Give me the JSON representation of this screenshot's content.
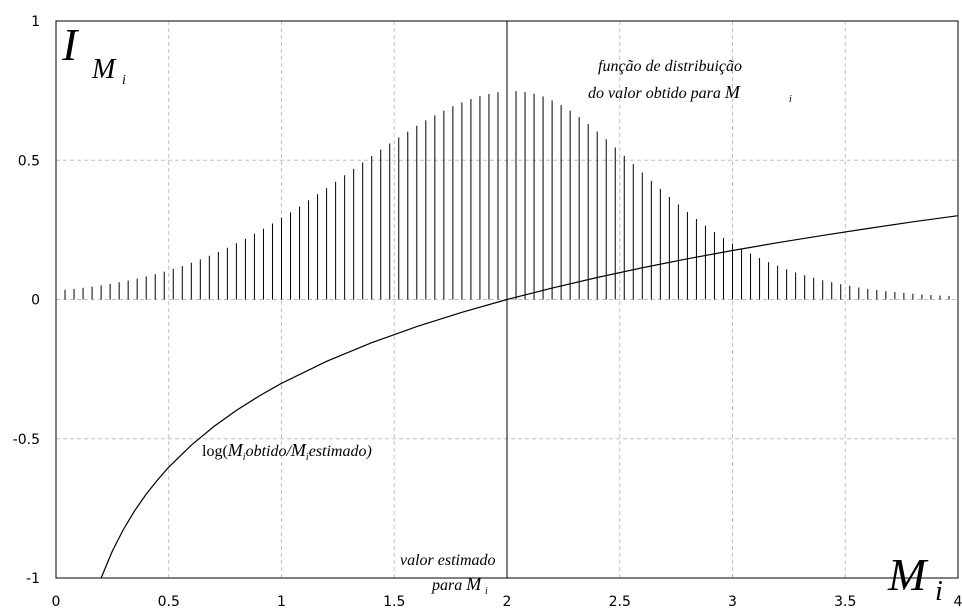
{
  "chart_data": {
    "type": "line",
    "xlim": [
      0,
      4
    ],
    "ylim": [
      -1,
      1
    ],
    "grid": true,
    "x_ticks": [
      "0",
      "0.5",
      "1",
      "1.5",
      "2",
      "2.5",
      "3",
      "3.5",
      "4"
    ],
    "y_ticks": [
      "1",
      "0.5",
      "0",
      "-0.5",
      "-1"
    ],
    "ylabel": {
      "main": "I",
      "sub": "M",
      "subsub": "i"
    },
    "xlabel": {
      "main": "M",
      "sub": "i"
    },
    "series": [
      {
        "type": "stem",
        "x": [
          0.04,
          0.08,
          0.12,
          0.16,
          0.2,
          0.24,
          0.28,
          0.32,
          0.36,
          0.4,
          0.44,
          0.48,
          0.52,
          0.56,
          0.6,
          0.64,
          0.68,
          0.72,
          0.76,
          0.8,
          0.84,
          0.88,
          0.92,
          0.96,
          1.0,
          1.04,
          1.08,
          1.12,
          1.16,
          1.2,
          1.24,
          1.28,
          1.32,
          1.36,
          1.4,
          1.44,
          1.48,
          1.52,
          1.56,
          1.6,
          1.64,
          1.68,
          1.72,
          1.76,
          1.8,
          1.84,
          1.88,
          1.92,
          1.96,
          2.0,
          2.04,
          2.08,
          2.12,
          2.16,
          2.2,
          2.24,
          2.28,
          2.32,
          2.36,
          2.4,
          2.44,
          2.48,
          2.52,
          2.56,
          2.6,
          2.64,
          2.68,
          2.72,
          2.76,
          2.8,
          2.84,
          2.88,
          2.92,
          2.96,
          3.0,
          3.04,
          3.08,
          3.12,
          3.16,
          3.2,
          3.24,
          3.28,
          3.32,
          3.36,
          3.4,
          3.44,
          3.48,
          3.52,
          3.56,
          3.6,
          3.64,
          3.68,
          3.72,
          3.76,
          3.8,
          3.84,
          3.88,
          3.92,
          3.96
        ],
        "y": [
          0.035,
          0.038,
          0.042,
          0.046,
          0.051,
          0.056,
          0.062,
          0.068,
          0.075,
          0.083,
          0.091,
          0.1,
          0.11,
          0.12,
          0.132,
          0.144,
          0.157,
          0.171,
          0.186,
          0.202,
          0.218,
          0.236,
          0.254,
          0.273,
          0.293,
          0.313,
          0.334,
          0.356,
          0.378,
          0.4,
          0.423,
          0.446,
          0.469,
          0.492,
          0.515,
          0.538,
          0.56,
          0.582,
          0.603,
          0.624,
          0.643,
          0.661,
          0.678,
          0.694,
          0.708,
          0.72,
          0.73,
          0.738,
          0.744,
          0.747,
          0.748,
          0.745,
          0.739,
          0.729,
          0.715,
          0.698,
          0.678,
          0.655,
          0.63,
          0.603,
          0.575,
          0.546,
          0.516,
          0.486,
          0.456,
          0.426,
          0.397,
          0.368,
          0.341,
          0.314,
          0.289,
          0.265,
          0.242,
          0.221,
          0.201,
          0.182,
          0.165,
          0.149,
          0.134,
          0.121,
          0.108,
          0.097,
          0.087,
          0.078,
          0.069,
          0.062,
          0.055,
          0.049,
          0.043,
          0.038,
          0.034,
          0.03,
          0.027,
          0.024,
          0.021,
          0.018,
          0.016,
          0.014,
          0.013
        ]
      },
      {
        "type": "line",
        "x": [
          0.2,
          0.25,
          0.3,
          0.35,
          0.4,
          0.45,
          0.5,
          0.6,
          0.7,
          0.8,
          0.9,
          1.0,
          1.2,
          1.4,
          1.6,
          1.8,
          2.0,
          2.2,
          2.4,
          2.6,
          2.8,
          3.0,
          3.2,
          3.4,
          3.6,
          3.8,
          4.0
        ],
        "y": [
          -1.0,
          -0.903,
          -0.824,
          -0.757,
          -0.699,
          -0.648,
          -0.602,
          -0.523,
          -0.456,
          -0.398,
          -0.347,
          -0.301,
          -0.222,
          -0.155,
          -0.097,
          -0.046,
          0.0,
          0.041,
          0.079,
          0.114,
          0.146,
          0.176,
          0.204,
          0.23,
          0.255,
          0.279,
          0.301
        ]
      },
      {
        "type": "vline",
        "x": 2
      }
    ],
    "annotations": {
      "distribution_line1": "função de distribuição",
      "distribution_line2_prefix": "do valor obtido para ",
      "log_prefix": "log(",
      "log_mid": "obtido/",
      "log_suffix": "estimado)",
      "estimated_line1": "valor estimado",
      "estimated_line2_prefix": "para ",
      "var_M": "M",
      "var_i": "i"
    }
  }
}
